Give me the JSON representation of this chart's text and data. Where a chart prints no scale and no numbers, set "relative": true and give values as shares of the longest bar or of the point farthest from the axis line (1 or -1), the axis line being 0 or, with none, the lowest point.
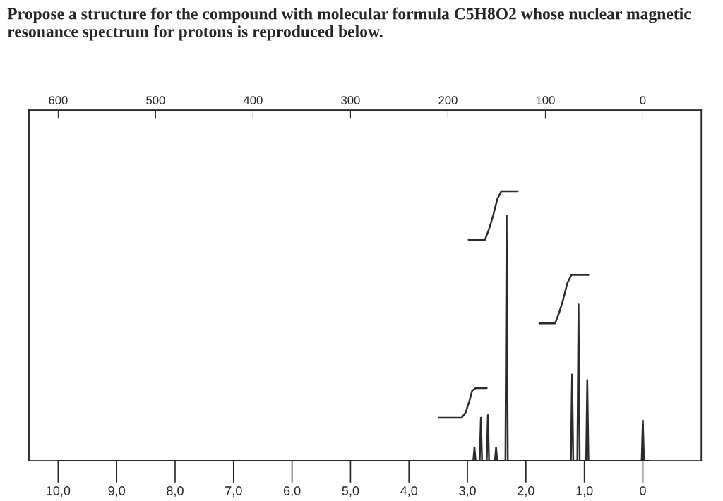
{
  "chart_data": {
    "type": "line",
    "title": "Propose a structure for the compound with molecular formula C5H8O2 whose nuclear magnetic resonance spectrum for protons is reproduced below.",
    "relative": true,
    "legend": false,
    "grid": false,
    "marker": "none",
    "line_style": "solid",
    "xlim": [
      10.5,
      -1.0
    ],
    "xticks": [
      {
        "value": 10,
        "label": "10,0"
      },
      {
        "value": 9,
        "label": "9,0"
      },
      {
        "value": 8,
        "label": "8,0"
      },
      {
        "value": 7,
        "label": "7,0"
      },
      {
        "value": 6,
        "label": "6,0"
      },
      {
        "value": 5,
        "label": "5,0"
      },
      {
        "value": 4,
        "label": "4,0"
      },
      {
        "value": 3,
        "label": "3,0"
      },
      {
        "value": 2,
        "label": "2,0"
      },
      {
        "value": 1,
        "label": "1,0"
      },
      0
    ],
    "x2lim": [
      630,
      -60
    ],
    "x2ticks": [
      600,
      500,
      400,
      300,
      200,
      100,
      0
    ],
    "series": [
      {
        "color": "#2b2b2b",
        "x": [
          10.0,
          2.9,
          2.88,
          2.86,
          2.79,
          2.77,
          2.75,
          2.67,
          2.65,
          2.63,
          2.53,
          2.51,
          2.49,
          2.35,
          2.33,
          2.31,
          1.23,
          1.21,
          1.19,
          1.12,
          1.1,
          1.08,
          0.97,
          0.95,
          0.93,
          0.02,
          0,
          -0.02,
          -0.1
        ],
        "values": [
          0,
          0,
          0.05,
          0,
          0,
          0.16,
          0,
          0,
          0.17,
          0,
          0,
          0.05,
          0,
          0,
          0.91,
          0,
          0,
          0.32,
          0,
          0,
          0.58,
          0,
          0,
          0.3,
          0,
          0,
          0.15,
          0,
          0
        ]
      },
      {
        "color": "#2b2b2b",
        "x": [
          3.49,
          3.1,
          3.03,
          2.97,
          2.92,
          2.86,
          2.67
        ],
        "values": [
          0.16,
          0.16,
          0.18,
          0.22,
          0.26,
          0.27,
          0.27
        ]
      },
      {
        "color": "#2b2b2b",
        "x": [
          2.98,
          2.7,
          2.63,
          2.56,
          2.49,
          2.42,
          2.14
        ],
        "values": [
          0.82,
          0.82,
          0.86,
          0.91,
          0.97,
          1.0,
          1.0
        ]
      },
      {
        "color": "#2b2b2b",
        "x": [
          1.77,
          1.5,
          1.43,
          1.36,
          1.29,
          1.22,
          0.93
        ],
        "values": [
          0.51,
          0.51,
          0.55,
          0.6,
          0.66,
          0.69,
          0.69
        ]
      }
    ]
  }
}
